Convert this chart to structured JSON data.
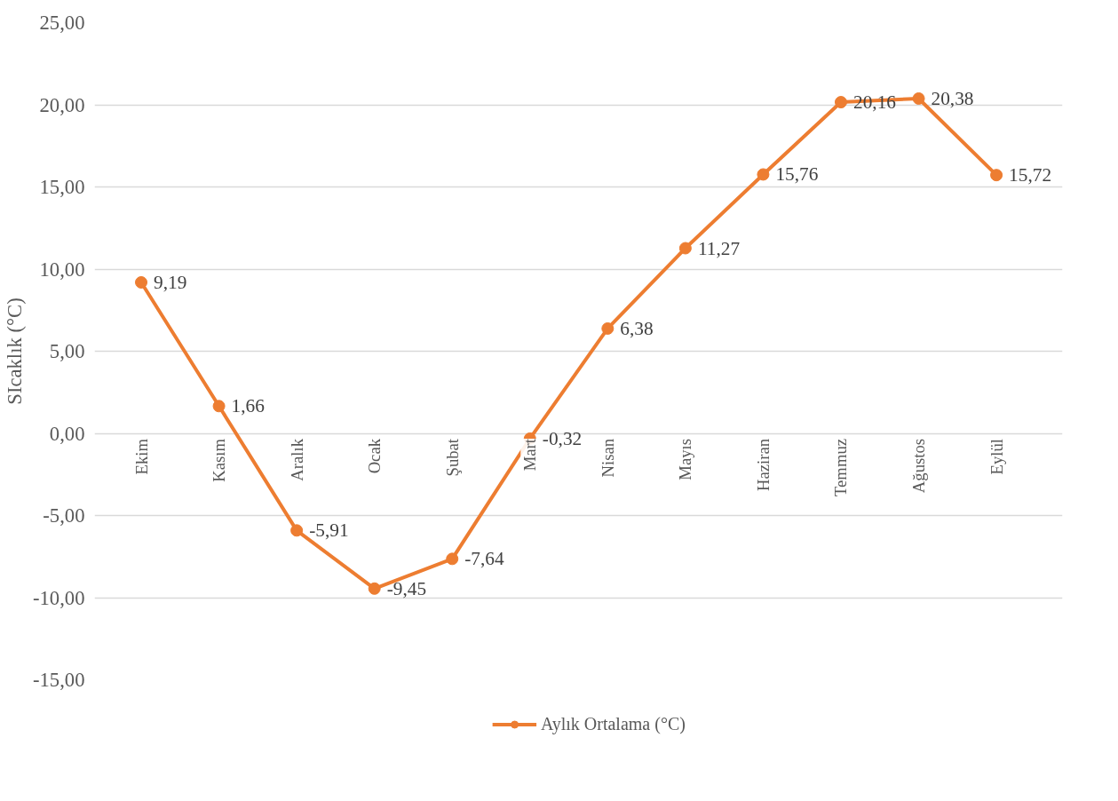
{
  "chart_data": {
    "type": "line",
    "ylabel": "SIcaklık (°C)",
    "categories": [
      "Ekim",
      "Kasım",
      "Aralık",
      "Ocak",
      "Şubat",
      "Mart",
      "Nisan",
      "Mayıs",
      "Haziran",
      "Temmuz",
      "Ağustos",
      "Eylül"
    ],
    "series": [
      {
        "name": "Aylık Ortalama (°C)",
        "color": "#ed7d31",
        "values": [
          9.19,
          1.66,
          -5.91,
          -9.45,
          -7.64,
          -0.32,
          6.38,
          11.27,
          15.76,
          20.16,
          20.38,
          15.72
        ],
        "value_labels": [
          "9,19",
          "1,66",
          "-5,91",
          "-9,45",
          "-7,64",
          "-0,32",
          "6,38",
          "11,27",
          "15,76",
          "20,16",
          "20,38",
          "15,72"
        ]
      }
    ],
    "ylim": [
      -15,
      25
    ],
    "yticks": [
      {
        "value": -15,
        "label": "-15,00"
      },
      {
        "value": -10,
        "label": "-10,00"
      },
      {
        "value": -5,
        "label": "-5,00"
      },
      {
        "value": 0,
        "label": "0,00"
      },
      {
        "value": 5,
        "label": "5,00"
      },
      {
        "value": 10,
        "label": "10,00"
      },
      {
        "value": 15,
        "label": "15,00"
      },
      {
        "value": 20,
        "label": "20,00"
      },
      {
        "value": 25,
        "label": "25,00"
      }
    ],
    "grid": "y",
    "legend": "bottom",
    "marker": "circle",
    "line_style": "solid"
  }
}
